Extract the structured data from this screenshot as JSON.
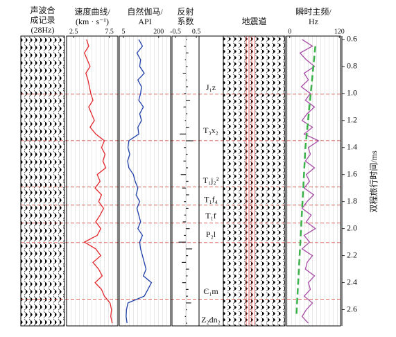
{
  "chart_data": {
    "type": "welltie",
    "time": [
      0.6,
      0.65,
      0.7,
      0.75,
      0.8,
      0.85,
      0.9,
      0.95,
      1.0,
      1.05,
      1.1,
      1.15,
      1.2,
      1.25,
      1.3,
      1.35,
      1.4,
      1.45,
      1.5,
      1.55,
      1.6,
      1.65,
      1.7,
      1.75,
      1.8,
      1.85,
      1.9,
      1.95,
      2.0,
      2.05,
      2.1,
      2.15,
      2.2,
      2.25,
      2.3,
      2.35,
      2.4,
      2.45,
      2.5,
      2.55,
      2.6,
      2.65,
      2.7
    ],
    "ylim": [
      0.575,
      2.72
    ],
    "yticks": [
      0.6,
      0.8,
      {
        "value": 1,
        "label": "1.0"
      },
      1.2,
      1.4,
      1.6,
      1.8,
      {
        "value": 2,
        "label": "2.0"
      },
      2.2,
      2.4,
      2.6
    ],
    "ylabel": "双程旅行时间/ms",
    "horizons": [
      1.005,
      1.349,
      1.692,
      1.826,
      1.959,
      2.103,
      2.523
    ],
    "formations": [
      {
        "label": "J₁z",
        "t": 0.96
      },
      {
        "label": "T₃x₂",
        "t": 1.28
      },
      {
        "label": "T₁j₂²",
        "t": 1.65
      },
      {
        "label": "T₁f₄",
        "t": 1.79
      },
      {
        "label": "T₁f",
        "t": 1.91
      },
      {
        "label": "P₂l",
        "t": 2.05
      },
      {
        "label": "Є₁m",
        "t": 2.47
      },
      {
        "label": "Z₂dn₂",
        "t": 2.68
      }
    ],
    "tracks": [
      {
        "header": [
          "声波合",
          "成记录",
          "(28Hz)"
        ]
      },
      {
        "header": [
          "速度曲线/",
          "(km · s⁻¹)"
        ],
        "xlim": [
          1.5,
          8.7
        ],
        "xticks": [
          2.5,
          7.5
        ],
        "color": "#e3262b",
        "values": [
          4.3,
          4.6,
          4.0,
          4.4,
          4.8,
          4.2,
          4.5,
          4.7,
          4.9,
          5.2,
          4.6,
          5.0,
          5.4,
          4.8,
          5.6,
          6.8,
          6.4,
          6.9,
          6.6,
          7.0,
          5.8,
          6.2,
          5.5,
          6.4,
          6.0,
          6.7,
          6.2,
          5.6,
          6.3,
          5.8,
          4.0,
          5.6,
          6.3,
          5.2,
          6.0,
          6.5,
          5.5,
          6.4,
          6.8,
          7.6,
          7.8,
          7.7,
          7.9
        ]
      },
      {
        "header": [
          "自然伽马/",
          "API"
        ],
        "xlim": [
          -18,
          266
        ],
        "xticks": [
          5,
          200
        ],
        "color": "#1f3fa8",
        "values": [
          90,
          110,
          80,
          100,
          95,
          120,
          85,
          105,
          100,
          90,
          115,
          95,
          105,
          85,
          90,
          35,
          30,
          40,
          28,
          35,
          60,
          70,
          85,
          75,
          95,
          80,
          90,
          100,
          85,
          110,
          95,
          100,
          110,
          120,
          130,
          115,
          160,
          140,
          120,
          30,
          22,
          20,
          25
        ]
      },
      {
        "header": [
          "反射",
          "系数"
        ],
        "xlim": [
          -0.67,
          0.63
        ],
        "xticks": [
          -0.5,
          0.5
        ],
        "color": "#222",
        "values": [
          0.05,
          -0.1,
          0.12,
          -0.05,
          0.08,
          -0.15,
          0.06,
          0.1,
          -0.08,
          0.2,
          -0.12,
          0.07,
          -0.05,
          0.15,
          -0.3,
          0.35,
          -0.1,
          0.08,
          -0.12,
          0.1,
          -0.25,
          0.12,
          -0.18,
          0.15,
          -0.1,
          0.12,
          -0.08,
          -0.15,
          0.18,
          -0.1,
          -0.35,
          0.3,
          0.1,
          -0.2,
          0.15,
          0.08,
          -0.18,
          0.12,
          0.1,
          0.25,
          0.05,
          -0.05,
          0.06
        ]
      },
      {
        "header": [
          "地震道"
        ]
      },
      {
        "header": [
          "瞬时主频/",
          "Hz"
        ],
        "xlim": [
          -8,
          123
        ],
        "xticks": [
          0,
          120
        ],
        "color": "#a64ca6",
        "values": [
          30,
          55,
          25,
          40,
          60,
          35,
          45,
          28,
          50,
          38,
          60,
          42,
          30,
          55,
          35,
          70,
          45,
          50,
          38,
          60,
          40,
          48,
          35,
          58,
          42,
          30,
          52,
          40,
          62,
          35,
          48,
          30,
          55,
          42,
          38,
          60,
          45,
          50,
          35,
          55,
          40,
          30,
          45
        ],
        "trend": {
          "time": [
            0.65,
            1.4,
            2.65
          ],
          "values": [
            62,
            38,
            16
          ],
          "color": "#3bb34a"
        }
      }
    ]
  }
}
